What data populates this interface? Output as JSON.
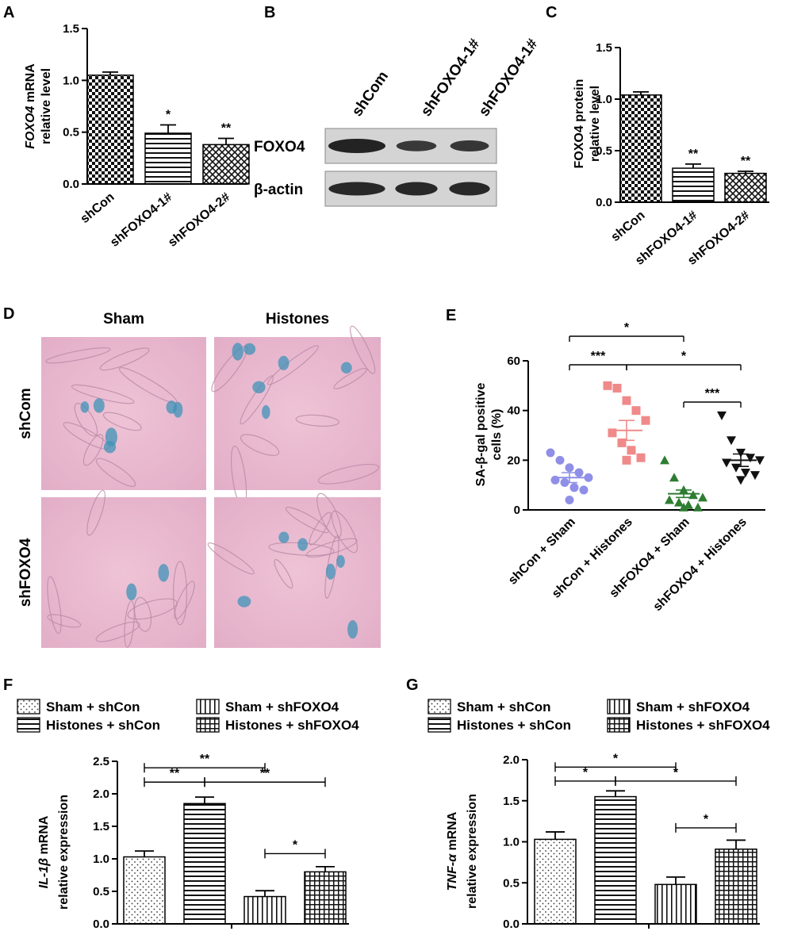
{
  "panels": {
    "A": {
      "label": "A",
      "chart_data": {
        "type": "bar",
        "ylabel_italic": "FOXO4",
        "ylabel_rest": " mRNA",
        "ylabel_line2": "relative level",
        "ylim": [
          0,
          1.5
        ],
        "yticks": [
          "0.0",
          "0.5",
          "1.0",
          "1.5"
        ],
        "categories": [
          "shCon",
          "shFOXO4-1#",
          "shFOXO4-2#"
        ],
        "values": [
          1.05,
          0.49,
          0.38
        ],
        "errors": [
          0.03,
          0.08,
          0.06
        ],
        "patterns": [
          "checker",
          "hstripe",
          "diamond"
        ],
        "sig": [
          "",
          "*",
          "**"
        ]
      }
    },
    "B": {
      "label": "B",
      "lanes": [
        "shCom",
        "shFOXO4-1#",
        "shFOXO4-1#"
      ],
      "rows": [
        {
          "name": "FOXO4",
          "intensity": [
            1.0,
            0.55,
            0.6
          ]
        },
        {
          "name": "β-actin",
          "intensity": [
            0.9,
            0.9,
            0.9
          ]
        }
      ]
    },
    "C": {
      "label": "C",
      "chart_data": {
        "type": "bar",
        "ylabel": "FOXO4 protein",
        "ylabel_line2": "relative level",
        "ylim": [
          0,
          1.5
        ],
        "yticks": [
          "0.0",
          "0.5",
          "1.0",
          "1.5"
        ],
        "categories": [
          "shCon",
          "shFOXO4-1#",
          "shFOXO4-2#"
        ],
        "values": [
          1.04,
          0.33,
          0.28
        ],
        "errors": [
          0.03,
          0.04,
          0.02
        ],
        "patterns": [
          "checker",
          "hstripe",
          "diamond"
        ],
        "sig": [
          "",
          "**",
          "**"
        ]
      }
    },
    "D": {
      "label": "D",
      "columns": [
        "Sham",
        "Histones"
      ],
      "rows": [
        "shCom",
        "shFOXO4"
      ]
    },
    "E": {
      "label": "E",
      "chart_data": {
        "type": "scatter",
        "ylabel": "SA-β-gal positive",
        "ylabel_line2": "cells (%)",
        "ylim": [
          0,
          60
        ],
        "yticks": [
          "0",
          "20",
          "40",
          "60"
        ],
        "categories": [
          "shCon + Sham",
          "shCon + Histones",
          "shFOXO4 + Sham",
          "shFOXO4 + Histones"
        ],
        "colors": [
          "#8f8fe8",
          "#f08a8a",
          "#2e7d32",
          "#111111"
        ],
        "markers": [
          "circle",
          "square",
          "triangle",
          "triangle-down"
        ],
        "means": [
          13,
          32,
          6.5,
          20
        ],
        "sem": [
          2,
          4,
          1.5,
          2.5
        ],
        "points": [
          [
            23,
            20,
            17,
            15,
            13,
            12,
            11,
            9,
            8,
            4
          ],
          [
            50,
            49,
            44,
            40,
            36,
            31,
            27,
            24,
            21,
            20
          ],
          [
            20,
            13,
            8,
            6,
            5,
            4,
            3,
            2,
            1,
            1
          ],
          [
            38,
            28,
            23,
            21,
            20,
            19,
            17,
            15,
            14,
            12
          ]
        ],
        "comparisons": [
          {
            "from": 0,
            "to": 2,
            "label": "*",
            "level": 3
          },
          {
            "from": 0,
            "to": 1,
            "label": "***",
            "level": 1
          },
          {
            "from": 1,
            "to": 3,
            "label": "*",
            "level": 1
          },
          {
            "from": 2,
            "to": 3,
            "label": "***",
            "level": 0
          }
        ]
      }
    },
    "F": {
      "label": "F",
      "chart_data": {
        "type": "bar",
        "legend": [
          "Sham + shCon",
          "Histones + shCon",
          "Sham + shFOXO4",
          "Histones + shFOXO4"
        ],
        "ylabel_italic": "IL-1β",
        "ylabel_rest": "  mRNA",
        "ylabel_line2": "relative expression",
        "ylim": [
          0,
          2.5
        ],
        "yticks": [
          "0.0",
          "0.5",
          "1.0",
          "1.5",
          "2.0",
          "2.5"
        ],
        "values": [
          1.03,
          1.85,
          0.42,
          0.8
        ],
        "errors": [
          0.09,
          0.1,
          0.09,
          0.08
        ],
        "patterns": [
          "dots",
          "hstripe",
          "vstripe",
          "grid"
        ],
        "comparisons": [
          {
            "from": 0,
            "to": 2,
            "label": "**",
            "y": 2.4
          },
          {
            "from": 0,
            "to": 1,
            "label": "**",
            "y": 2.18
          },
          {
            "from": 1,
            "to": 3,
            "label": "**",
            "y": 2.18
          },
          {
            "from": 2,
            "to": 3,
            "label": "*",
            "y": 1.08
          }
        ]
      }
    },
    "G": {
      "label": "G",
      "chart_data": {
        "type": "bar",
        "legend": [
          "Sham + shCon",
          "Histones + shCon",
          "Sham + shFOXO4",
          "Histones + shFOXO4"
        ],
        "ylabel_italic": "TNF-α",
        "ylabel_rest": "  mRNA",
        "ylabel_line2": "relative expression",
        "ylim": [
          0,
          2.0
        ],
        "yticks": [
          "0.0",
          "0.5",
          "1.0",
          "1.5",
          "2.0"
        ],
        "values": [
          1.03,
          1.55,
          0.48,
          0.91
        ],
        "errors": [
          0.09,
          0.07,
          0.09,
          0.11
        ],
        "patterns": [
          "dots",
          "hstripe",
          "vstripe",
          "grid"
        ],
        "comparisons": [
          {
            "from": 0,
            "to": 2,
            "label": "*",
            "y": 1.91
          },
          {
            "from": 0,
            "to": 1,
            "label": "*",
            "y": 1.74
          },
          {
            "from": 1,
            "to": 3,
            "label": "*",
            "y": 1.74
          },
          {
            "from": 2,
            "to": 3,
            "label": "*",
            "y": 1.17
          }
        ]
      }
    }
  }
}
